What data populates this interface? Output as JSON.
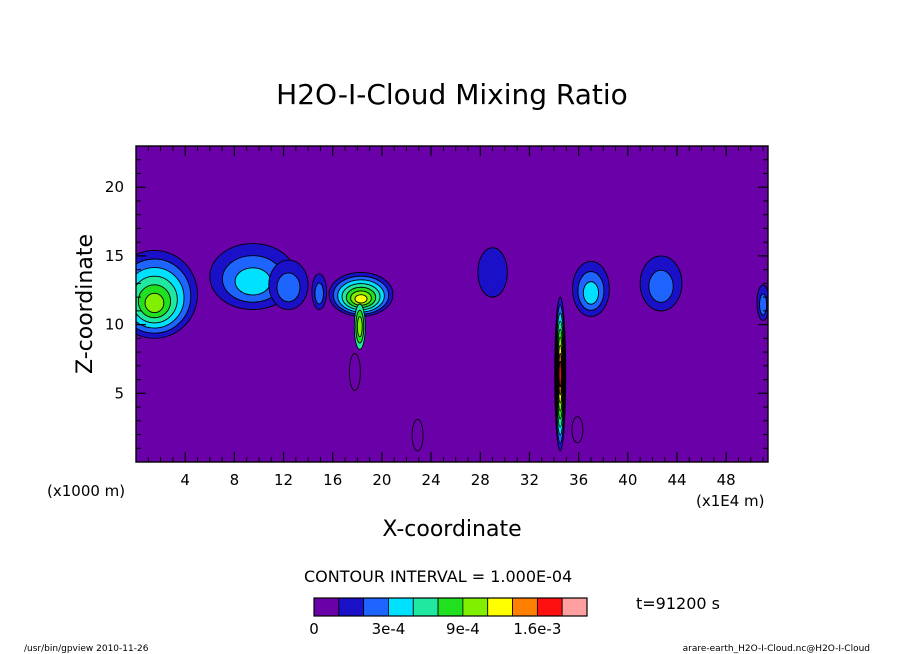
{
  "chart_data": {
    "type": "contour",
    "title": "H2O-I-Cloud Mixing Ratio",
    "xlabel": "X-coordinate",
    "ylabel": "Z-coordinate",
    "x_unit_label": "(x1E4 m)",
    "y_unit_label": "(x1000 m)",
    "xlim": [
      0,
      51.4
    ],
    "ylim": [
      0,
      23
    ],
    "x_ticks": [
      4,
      8,
      12,
      16,
      20,
      24,
      28,
      32,
      36,
      40,
      44,
      48
    ],
    "x_tick_labels": [
      "4",
      "8",
      "12",
      "16",
      "20",
      "24",
      "28",
      "32",
      "36",
      "40",
      "44",
      "48"
    ],
    "y_ticks": [
      5,
      10,
      15,
      20
    ],
    "y_tick_labels": [
      "5",
      "10",
      "15",
      "20"
    ],
    "background_color": "#6a00a8",
    "contour_interval_label": "CONTOUR INTERVAL = 1.000E-04",
    "time_label": "t=91200 s",
    "colorbar": {
      "colors": [
        "#6a00a8",
        "#1a10c8",
        "#1e64ff",
        "#00e0ff",
        "#20e8a0",
        "#20e020",
        "#80f000",
        "#ffff00",
        "#ff8000",
        "#ff1010",
        "#ffa0a0"
      ],
      "bounds": [
        0,
        0.0001,
        0.0002,
        0.0003,
        0.0005,
        0.0007,
        0.0009,
        0.0011,
        0.0013,
        0.0016,
        0.0019,
        0.0025
      ],
      "tick_labels": [
        "0",
        "3e-4",
        "9e-4",
        "1.6e-3"
      ],
      "tick_values": [
        0,
        0.0003,
        0.0009,
        0.0016
      ]
    },
    "features": [
      {
        "x": 1.5,
        "z": 12.2,
        "rx": 3.5,
        "rz": 3.2,
        "levels": [
          1,
          2,
          3,
          4,
          5,
          6
        ]
      },
      {
        "x": 9.5,
        "z": 13.5,
        "rx": 3.5,
        "rz": 2.4,
        "levels": [
          1,
          2,
          3
        ]
      },
      {
        "x": 12.4,
        "z": 12.9,
        "rx": 1.6,
        "rz": 1.8,
        "levels": [
          1,
          2
        ]
      },
      {
        "x": 14.9,
        "z": 12.4,
        "rx": 0.6,
        "rz": 1.3,
        "levels": [
          1,
          2
        ]
      },
      {
        "x": 18.3,
        "z": 12.2,
        "rx": 2.6,
        "rz": 1.6,
        "levels": [
          1,
          2,
          3,
          4,
          5,
          6,
          7
        ]
      },
      {
        "x": 29.0,
        "z": 13.8,
        "rx": 1.2,
        "rz": 1.8,
        "levels": [
          1
        ]
      },
      {
        "x": 37.0,
        "z": 12.6,
        "rx": 1.5,
        "rz": 2.0,
        "levels": [
          1,
          2,
          3
        ]
      },
      {
        "x": 42.7,
        "z": 13.0,
        "rx": 1.7,
        "rz": 2.0,
        "levels": [
          1,
          2
        ]
      },
      {
        "x": 51.0,
        "z": 11.6,
        "rx": 0.5,
        "rz": 1.3,
        "levels": [
          1,
          2
        ]
      }
    ],
    "streaks": [
      {
        "x": 34.5,
        "z_top": 12.0,
        "z_bottom": 0.8,
        "levels": [
          1,
          2,
          3,
          4,
          5,
          6,
          7,
          8,
          9
        ]
      },
      {
        "x": 18.2,
        "z_top": 11.5,
        "z_bottom": 8.2,
        "levels": [
          4,
          5,
          6
        ]
      },
      {
        "x": 17.8,
        "z_top": 7.9,
        "z_bottom": 5.2,
        "levels": [
          0
        ]
      },
      {
        "x": 22.9,
        "z_top": 3.1,
        "z_bottom": 0.8,
        "levels": [
          0
        ]
      },
      {
        "x": 35.9,
        "z_top": 3.3,
        "z_bottom": 1.4,
        "levels": [
          0
        ]
      }
    ]
  },
  "footer": {
    "left": "/usr/bin/gpview  2010-11-26",
    "right": "arare-earth_H2O-I-Cloud.nc@H2O-I-Cloud"
  }
}
